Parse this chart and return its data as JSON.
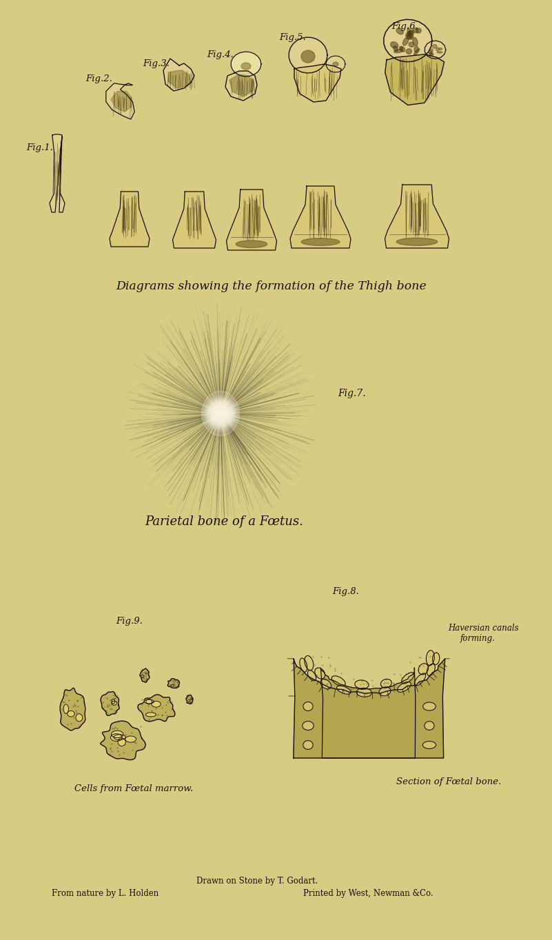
{
  "bg": "#d8cc84",
  "ink": "#1a1008",
  "bone_fill": "#c8b868",
  "bone_dark": "#6a5820",
  "title_caption1": "Diagrams showing the formation of the Thigh bone",
  "title_caption2": "Parietal bone of a Fœtus.",
  "fig7_label": "Fig.7.",
  "fig8_label": "Fig.8.",
  "fig9_label": "Fig.9.",
  "fig1_label": "Fig.1.",
  "fig2_label": "Fig.2.",
  "fig3_label": "Fig.3.",
  "fig4_label": "Fig.4.",
  "fig5_label": "Fig.5.",
  "fig6_label": "Fig.6.",
  "caption_cells": "Cells from Fœtal marrow.",
  "caption_section": "Section of Fœtal bone.",
  "caption_haversian1": "Haversian canals",
  "caption_haversian2": "forming.",
  "footer1": "Drawn on Stone by T. Godart.",
  "footer2": "Printed by West, Newman &Co.",
  "footer3": "From nature by L. Holden"
}
